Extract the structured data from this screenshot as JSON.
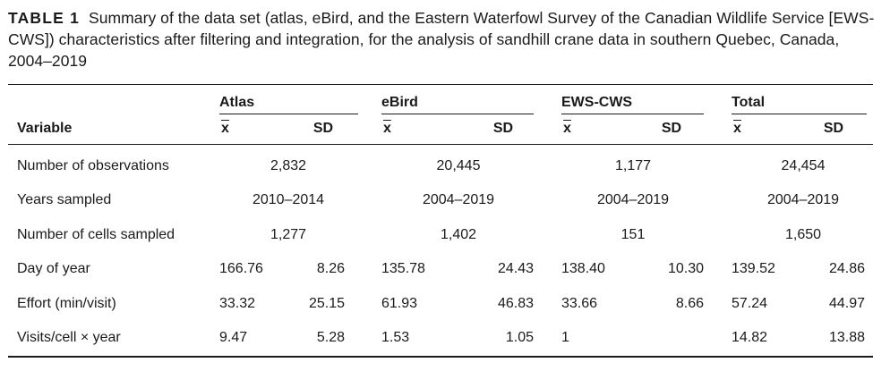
{
  "caption": {
    "label": "TABLE 1",
    "text": "Summary of the data set (atlas, eBird, and the Eastern Waterfowl Survey of the Canadian Wildlife Service [EWS-CWS]) characteristics after filtering and integration, for the analysis of sandhill crane data in southern Quebec, Canada, 2004–2019"
  },
  "table": {
    "variable_header": "Variable",
    "groups": [
      "Atlas",
      "eBird",
      "EWS-CWS",
      "Total"
    ],
    "mean_symbol": "x",
    "sd_label": "SD",
    "rows": [
      {
        "label": "Number of observations",
        "spanned": [
          "2,832",
          "20,445",
          "1,177",
          "24,454"
        ]
      },
      {
        "label": "Years sampled",
        "spanned": [
          "2010–2014",
          "2004–2019",
          "2004–2019",
          "2004–2019"
        ]
      },
      {
        "label": "Number of cells sampled",
        "spanned": [
          "1,277",
          "1,402",
          "151",
          "1,650"
        ]
      },
      {
        "label": "Day of year",
        "values": [
          [
            "166.76",
            "8.26"
          ],
          [
            "135.78",
            "24.43"
          ],
          [
            "138.40",
            "10.30"
          ],
          [
            "139.52",
            "24.86"
          ]
        ]
      },
      {
        "label": "Effort (min/visit)",
        "values": [
          [
            "33.32",
            "25.15"
          ],
          [
            "61.93",
            "46.83"
          ],
          [
            "33.66",
            "8.66"
          ],
          [
            "57.24",
            "44.97"
          ]
        ]
      },
      {
        "label": "Visits/cell × year",
        "values": [
          [
            "9.47",
            "5.28"
          ],
          [
            "1.53",
            "1.05"
          ],
          [
            "1",
            ""
          ],
          [
            "14.82",
            "13.88"
          ]
        ]
      }
    ]
  }
}
